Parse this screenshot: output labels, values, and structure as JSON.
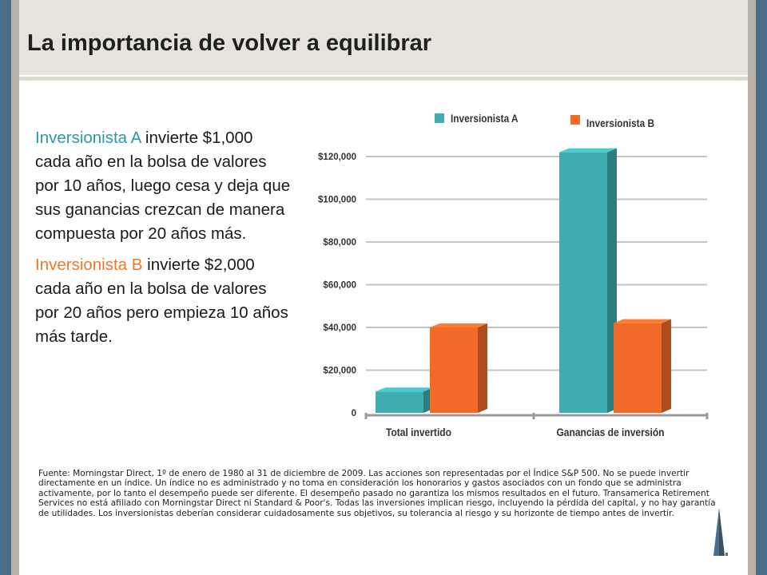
{
  "title": "La importancia de volver a equilibrar",
  "paragraphs": [
    {
      "highlight": "Inversionista A",
      "text": " invierte $1,000 cada año en la bolsa de valores por 10 años, luego cesa y deja que sus ganancias crezcan de manera compuesta por 20 años más."
    },
    {
      "highlight": "Inversionista B",
      "text": " invierte $2,000 cada año en la bolsa de valores por 20 años pero empieza 10 años más tarde."
    }
  ],
  "chart_data": {
    "type": "bar",
    "categories": [
      "Total invertido",
      "Ganancias de inversión"
    ],
    "series": [
      {
        "name": "Inversionista A",
        "color": "#3fadb2",
        "values": [
          10000,
          122000
        ]
      },
      {
        "name": "Inversionista B",
        "color": "#f26a2a",
        "values": [
          40000,
          42000
        ]
      }
    ],
    "yticks": [
      "0",
      "$20,000",
      "$40,000",
      "$60,000",
      "$80,000",
      "$100,000",
      "$120,000"
    ],
    "ylim": [
      0,
      120000
    ],
    "grid": true,
    "legend": "top"
  },
  "footnote": "Fuente: Morningstar Direct, 1º de enero de 1980 al 31 de diciembre de 2009. Las acciones son representadas por el Índice S&P 500. No se puede invertir directamente en un índice. Un índice no es administrado y no toma en consideración los honorarios y gastos asociados con un fondo que se administra activamente, por lo tanto el desempeño puede ser diferente. El desempeño pasado no garantiza los mismos resultados en el futuro. Transamerica Retirement Services no está afiliado con Morningstar Direct ni Standard & Poor's. Todas las inversiones implican riesgo, incluyendo la pérdida del capital, y no hay garantía de utilidades. Los inversionistas deberían considerar cuidadosamente sus objetivos, su tolerancia al riesgo y su horizonte de tiempo antes de invertir.",
  "logo_icon": "pyramid-building-icon"
}
